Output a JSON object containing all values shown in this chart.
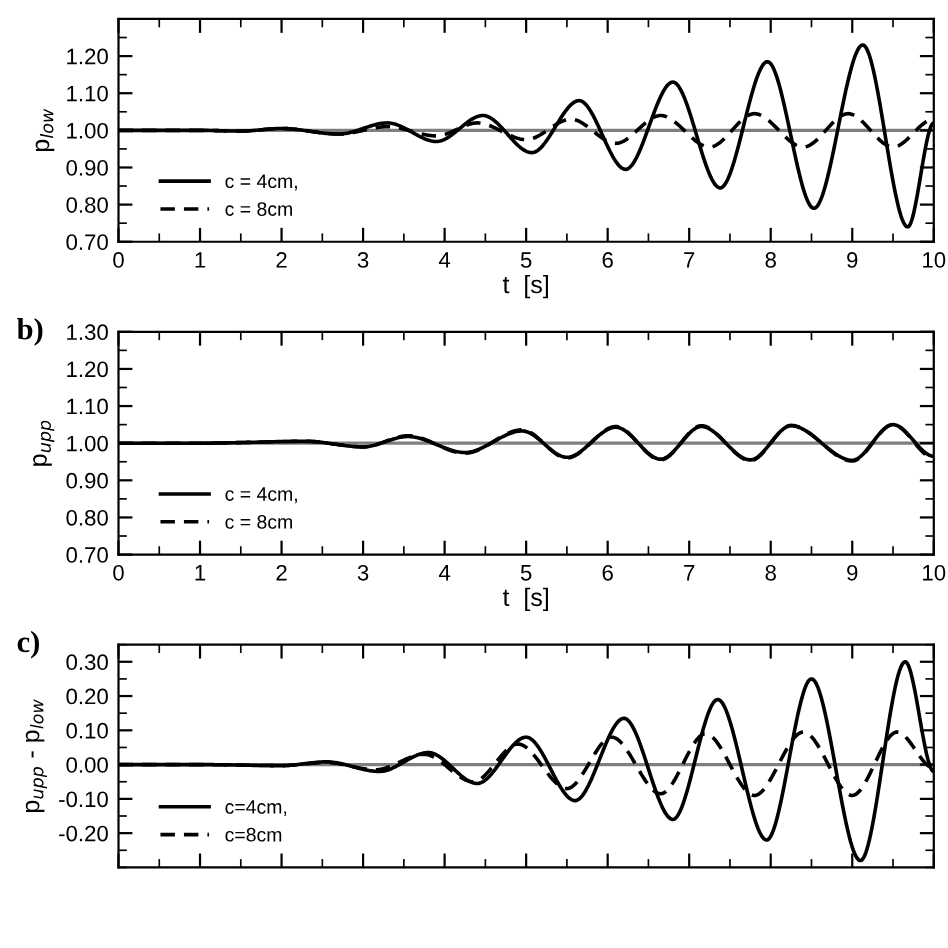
{
  "chart_data": [
    {
      "type": "line",
      "xlabel": "t  [s]",
      "ylabel": "p$_{low}$",
      "xlim": [
        0,
        10
      ],
      "ylim": [
        0.7,
        1.3
      ],
      "xticks": [
        0,
        1,
        2,
        3,
        4,
        5,
        6,
        7,
        8,
        9,
        10
      ],
      "yticks": [
        {
          "value": 0.7,
          "label": "0.70"
        },
        {
          "value": 0.8,
          "label": "0.80"
        },
        {
          "value": 0.9,
          "label": "0.90"
        },
        {
          "value": 1.0,
          "label": "1.00"
        },
        {
          "value": 1.1,
          "label": "1.10"
        },
        {
          "value": 1.2,
          "label": "1.20"
        }
      ],
      "grid": false,
      "legend": "bottom left",
      "marker": "none",
      "ref_lines": [
        {
          "axis": "y",
          "value": 1.0,
          "color": "#7f7f7f"
        }
      ],
      "series": [
        {
          "name": "c = 4cm,",
          "color": "#000000",
          "line_style": "solid",
          "x": [
            0,
            1,
            1.5,
            2.0,
            2.7,
            3.3,
            3.9,
            4.47,
            5.07,
            5.65,
            6.22,
            6.8,
            7.38,
            7.96,
            8.53,
            9.13,
            9.68,
            10
          ],
          "values": [
            1.0,
            1.0,
            0.998,
            1.005,
            0.99,
            1.02,
            0.97,
            1.04,
            0.94,
            1.08,
            0.895,
            1.13,
            0.845,
            1.185,
            0.79,
            1.23,
            0.74,
            1.02
          ]
        },
        {
          "name": "c = 8cm",
          "color": "#000000",
          "line_style": "dashed",
          "x": [
            0,
            1,
            1.5,
            2.0,
            2.7,
            3.3,
            3.9,
            4.4,
            5.0,
            5.55,
            6.1,
            6.65,
            7.25,
            7.8,
            8.4,
            8.95,
            9.5,
            10
          ],
          "values": [
            1.0,
            1.0,
            0.998,
            1.005,
            0.99,
            1.01,
            0.985,
            1.02,
            0.975,
            1.03,
            0.965,
            1.04,
            0.955,
            1.045,
            0.955,
            1.045,
            0.955,
            1.03
          ]
        }
      ]
    },
    {
      "type": "line",
      "xlabel": "t  [s]",
      "ylabel": "p$_{upp}$",
      "xlim": [
        0,
        10
      ],
      "ylim": [
        0.7,
        1.3
      ],
      "xticks": [
        0,
        1,
        2,
        3,
        4,
        5,
        6,
        7,
        8,
        9,
        10
      ],
      "yticks": [
        {
          "value": 0.7,
          "label": "0.70"
        },
        {
          "value": 0.8,
          "label": "0.80"
        },
        {
          "value": 0.9,
          "label": "0.90"
        },
        {
          "value": 1.0,
          "label": "1.00"
        },
        {
          "value": 1.1,
          "label": "1.10"
        },
        {
          "value": 1.2,
          "label": "1.20"
        },
        {
          "value": 1.3,
          "label": "1.30"
        }
      ],
      "grid": false,
      "legend": "bottom left",
      "marker": "none",
      "annotations": [
        "b)"
      ],
      "ref_lines": [
        {
          "axis": "y",
          "value": 1.0,
          "color": "#7f7f7f"
        }
      ],
      "series": [
        {
          "name": "c = 4cm,",
          "color": "#000000",
          "line_style": "solid",
          "x": [
            0,
            1,
            2.3,
            3.0,
            3.55,
            4.25,
            4.95,
            5.5,
            6.1,
            6.65,
            7.15,
            7.75,
            8.25,
            9.0,
            9.5,
            10
          ],
          "values": [
            1.0,
            1.0,
            1.005,
            0.99,
            1.018,
            0.975,
            1.033,
            0.962,
            1.043,
            0.957,
            1.045,
            0.955,
            1.047,
            0.954,
            1.05,
            0.965
          ]
        },
        {
          "name": "c = 8cm",
          "color": "#000000",
          "line_style": "dashed",
          "x": [
            0,
            1,
            2.3,
            3.0,
            3.55,
            4.25,
            4.95,
            5.5,
            6.1,
            6.65,
            7.15,
            7.75,
            8.25,
            9.0,
            9.5,
            10
          ],
          "values": [
            1.0,
            1.0,
            1.005,
            0.99,
            1.02,
            0.973,
            1.036,
            0.96,
            1.045,
            0.955,
            1.047,
            0.953,
            1.048,
            0.952,
            1.05,
            0.96
          ]
        }
      ]
    },
    {
      "type": "line",
      "ylabel": "p$_{upp}$ - p$_{low}$",
      "xlim": [
        0,
        10
      ],
      "ylim": [
        -0.3,
        0.35
      ],
      "xticks": [
        0,
        1,
        2,
        3,
        4,
        5,
        6,
        7,
        8,
        9,
        10
      ],
      "yticks": [
        {
          "value": -0.2,
          "label": "-0.20"
        },
        {
          "value": -0.1,
          "label": "-0.10"
        },
        {
          "value": 0.0,
          "label": "0.00"
        },
        {
          "value": 0.1,
          "label": "0.10"
        },
        {
          "value": 0.2,
          "label": "0.20"
        },
        {
          "value": 0.3,
          "label": "0.30"
        }
      ],
      "tick_labels": "y",
      "grid": false,
      "legend": "bottom left",
      "marker": "none",
      "annotations": [
        "c)"
      ],
      "ref_lines": [
        {
          "axis": "y",
          "value": 0.0,
          "color": "#7f7f7f"
        }
      ],
      "series": [
        {
          "name": "c=4cm,",
          "color": "#000000",
          "line_style": "solid",
          "x": [
            0,
            1,
            2.0,
            2.55,
            3.2,
            3.8,
            4.4,
            5.0,
            5.6,
            6.2,
            6.8,
            7.35,
            7.95,
            8.5,
            9.1,
            9.65,
            10
          ],
          "values": [
            0,
            0,
            -0.003,
            0.008,
            -0.02,
            0.035,
            -0.055,
            0.08,
            -0.105,
            0.135,
            -0.16,
            0.19,
            -0.22,
            0.25,
            -0.28,
            0.3,
            -0.02
          ]
        },
        {
          "name": "c=8cm",
          "color": "#000000",
          "line_style": "dashed",
          "x": [
            0,
            1,
            2.0,
            2.55,
            3.15,
            3.75,
            4.35,
            4.9,
            5.5,
            6.05,
            6.65,
            7.2,
            7.8,
            8.4,
            9.0,
            9.55,
            10
          ],
          "values": [
            0,
            0,
            -0.003,
            0.006,
            -0.015,
            0.03,
            -0.05,
            0.06,
            -0.07,
            0.08,
            -0.085,
            0.09,
            -0.09,
            0.095,
            -0.09,
            0.095,
            -0.01
          ]
        }
      ]
    }
  ]
}
